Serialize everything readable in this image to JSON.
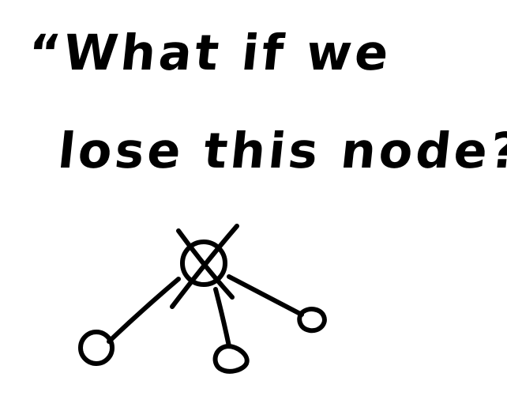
{
  "sketch": {
    "quote_line_1": "“What if we",
    "quote_line_2": "lose this node?”",
    "ink_color": "#000000",
    "paper_color": "#ffffff"
  },
  "diagram": {
    "failed_node_icon": "crossed-out-circle-icon",
    "child_node_icon": "circle-icon",
    "child_node_count": 3
  }
}
